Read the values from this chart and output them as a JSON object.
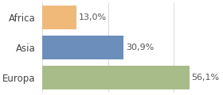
{
  "categories": [
    "Europa",
    "Asia",
    "Africa"
  ],
  "values": [
    56.1,
    30.9,
    13.0
  ],
  "bar_colors": [
    "#a8bc8a",
    "#6b8ebb",
    "#f0b97a"
  ],
  "labels": [
    "56,1%",
    "30,9%",
    "13,0%"
  ],
  "background_color": "#ffffff",
  "xlim": [
    0,
    68
  ],
  "bar_height": 0.78,
  "label_fontsize": 8,
  "tick_fontsize": 8.5,
  "grid_values": [
    0,
    25,
    50
  ]
}
